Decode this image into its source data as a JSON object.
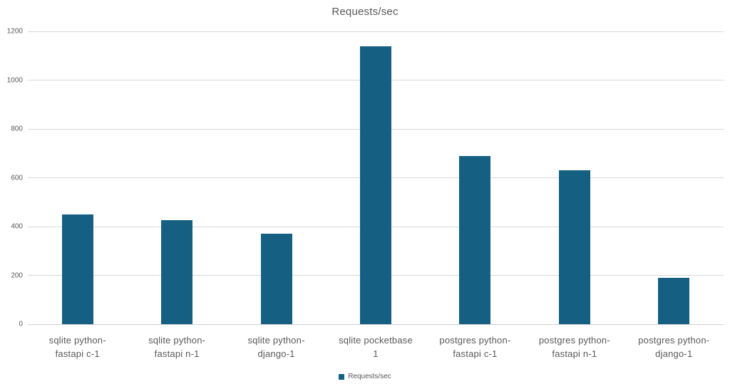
{
  "chart_data": {
    "type": "bar",
    "title": "Requests/sec",
    "categories": [
      "sqlite python-fastapi c-1",
      "sqlite python-fastapi n-1",
      "sqlite python-django-1",
      "sqlite pocketbase 1",
      "postgres python-fastapi c-1",
      "postgres python-fastapi n-1",
      "postgres python-django-1"
    ],
    "categories_display": [
      [
        "sqlite python-",
        "fastapi c-1"
      ],
      [
        "sqlite python-",
        "fastapi n-1"
      ],
      [
        "sqlite python-",
        "django-1"
      ],
      [
        "sqlite pocketbase",
        "1"
      ],
      [
        "postgres python-",
        "fastapi c-1"
      ],
      [
        "postgres python-",
        "fastapi n-1"
      ],
      [
        "postgres python-",
        "django-1"
      ]
    ],
    "values": [
      450,
      425,
      370,
      1140,
      690,
      630,
      190
    ],
    "ylim": [
      0,
      1200
    ],
    "yticks": [
      0,
      200,
      400,
      600,
      800,
      1000,
      1200
    ],
    "grid": true,
    "legend": {
      "label": "Requests/sec",
      "position": "bottom"
    },
    "colors": {
      "bar": "#156082",
      "gridline": "#d9d9d9",
      "text": "#595959"
    }
  }
}
